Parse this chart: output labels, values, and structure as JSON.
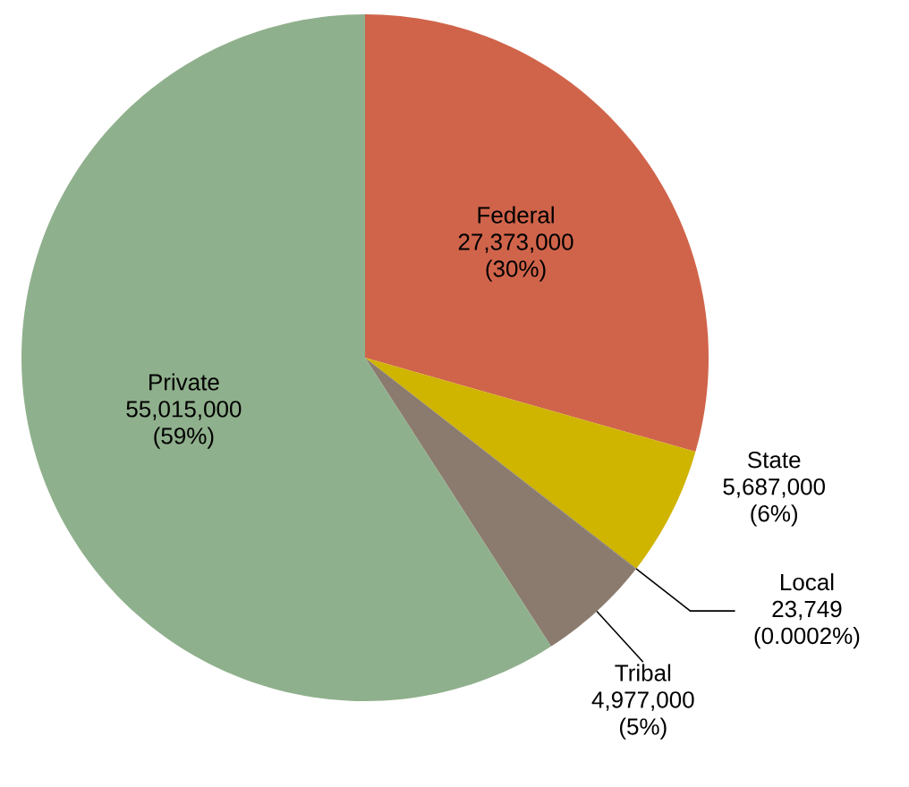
{
  "chart_data": {
    "type": "pie",
    "categories": [
      "Federal",
      "State",
      "Local",
      "Tribal",
      "Private"
    ],
    "values": [
      27373000,
      5687000,
      23749,
      4977000,
      55015000
    ],
    "value_labels": [
      "27,373,000 (30%)",
      "5,687,000 (6%)",
      "23,749 (0.0002%)",
      "4,977,000 (5%)",
      "55,015,000 (59%)"
    ],
    "colors": [
      "#d0644a",
      "#cfb400",
      "#555555",
      "#8b7b6e",
      "#8fb08c"
    ]
  }
}
